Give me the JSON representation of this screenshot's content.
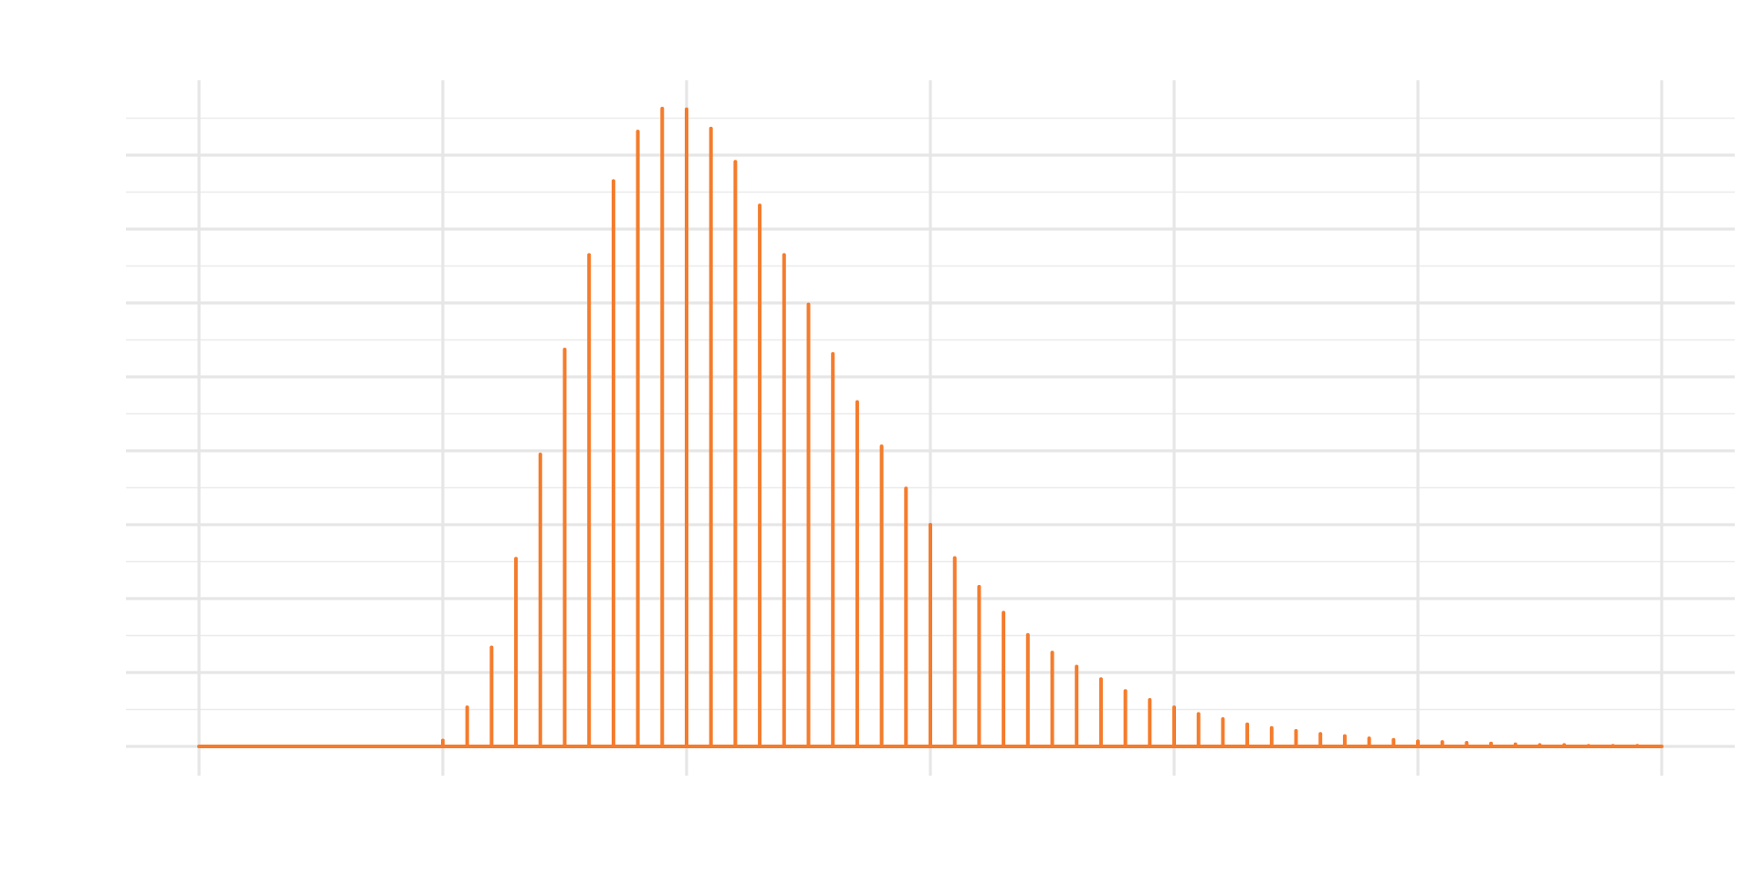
{
  "chart_data": {
    "type": "bar",
    "title": "",
    "xlabel": "",
    "ylabel": "",
    "xlim": [
      0,
      60
    ],
    "ylim": [
      0,
      0.0875
    ],
    "x_gridlines": [
      0,
      10,
      20,
      30,
      40,
      50,
      60
    ],
    "x_minor_gridlines": [],
    "y_gridlines": [
      0.01,
      0.02,
      0.03,
      0.04,
      0.05,
      0.06,
      0.07,
      0.08
    ],
    "y_minor_gridlines": [
      0.005,
      0.015,
      0.025,
      0.035,
      0.045,
      0.055,
      0.065,
      0.075,
      0.085
    ],
    "grid": true,
    "tick_labels_visible": false,
    "series": [
      {
        "color": "#f47c2c",
        "x": [
          0,
          1,
          2,
          3,
          4,
          5,
          6,
          7,
          8,
          9,
          10,
          11,
          12,
          13,
          14,
          15,
          16,
          17,
          18,
          19,
          20,
          21,
          22,
          23,
          24,
          25,
          26,
          27,
          28,
          29,
          30,
          31,
          32,
          33,
          34,
          35,
          36,
          37,
          38,
          39,
          40,
          41,
          42,
          43,
          44,
          45,
          46,
          47,
          48,
          49,
          50,
          51,
          52,
          53,
          54,
          55,
          56,
          57,
          58,
          59,
          60
        ],
        "values": [
          0,
          0,
          0,
          0,
          0,
          0,
          0,
          0,
          0,
          0,
          0.0008,
          0.0053,
          0.0134,
          0.0254,
          0.0395,
          0.0537,
          0.0665,
          0.0765,
          0.0832,
          0.0863,
          0.0862,
          0.0836,
          0.0791,
          0.0732,
          0.0665,
          0.0598,
          0.0531,
          0.0466,
          0.0406,
          0.0349,
          0.03,
          0.0255,
          0.0216,
          0.0181,
          0.0151,
          0.0127,
          0.0108,
          0.0091,
          0.0075,
          0.0063,
          0.0053,
          0.0044,
          0.0037,
          0.003,
          0.0025,
          0.0021,
          0.0017,
          0.0014,
          0.0011,
          0.0009,
          0.0007,
          0.0006,
          0.0005,
          0.0004,
          0.0003,
          0.0002,
          0.0002,
          0.0001,
          0.0001,
          0.0001,
          0
        ]
      }
    ]
  }
}
